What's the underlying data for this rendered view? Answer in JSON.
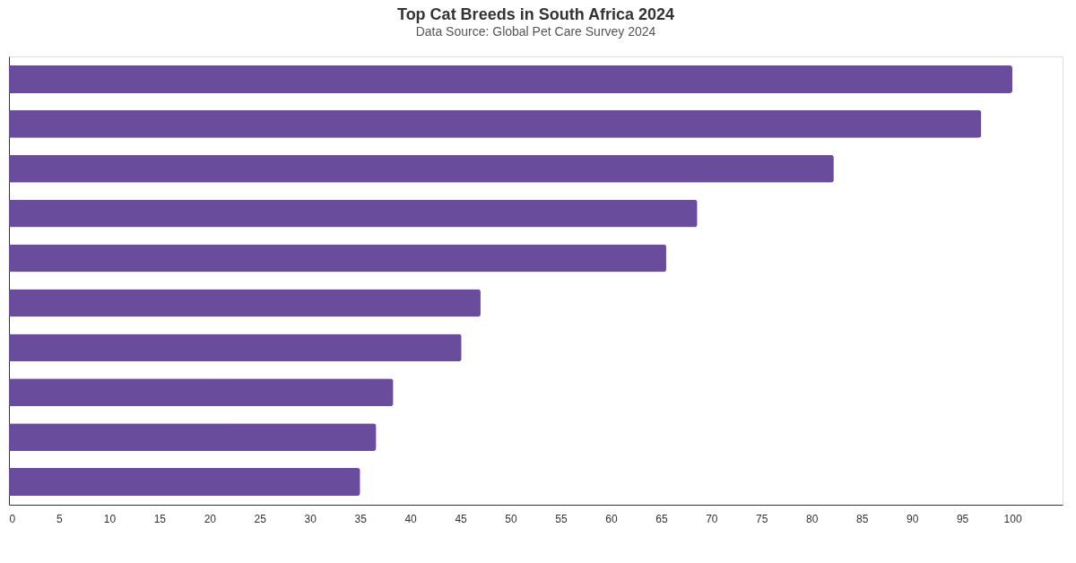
{
  "chart_data": {
    "type": "bar",
    "orientation": "horizontal",
    "title": "Top Cat Breeds in South Africa 2024",
    "subtitle": "Data Source: Global Pet Care Survey 2024",
    "categories": [
      null,
      null,
      null,
      null,
      null,
      null,
      null,
      null,
      null,
      null
    ],
    "values": [
      100,
      96.9,
      82.2,
      68.6,
      65.5,
      47.0,
      45.1,
      38.3,
      36.6,
      35.0
    ],
    "color": "#6a4c9c",
    "xlim": [
      0,
      105
    ],
    "xticks": [
      0,
      5,
      10,
      15,
      20,
      25,
      30,
      35,
      40,
      45,
      50,
      55,
      60,
      65,
      70,
      75,
      80,
      85,
      90,
      95,
      100
    ],
    "grid": false
  }
}
